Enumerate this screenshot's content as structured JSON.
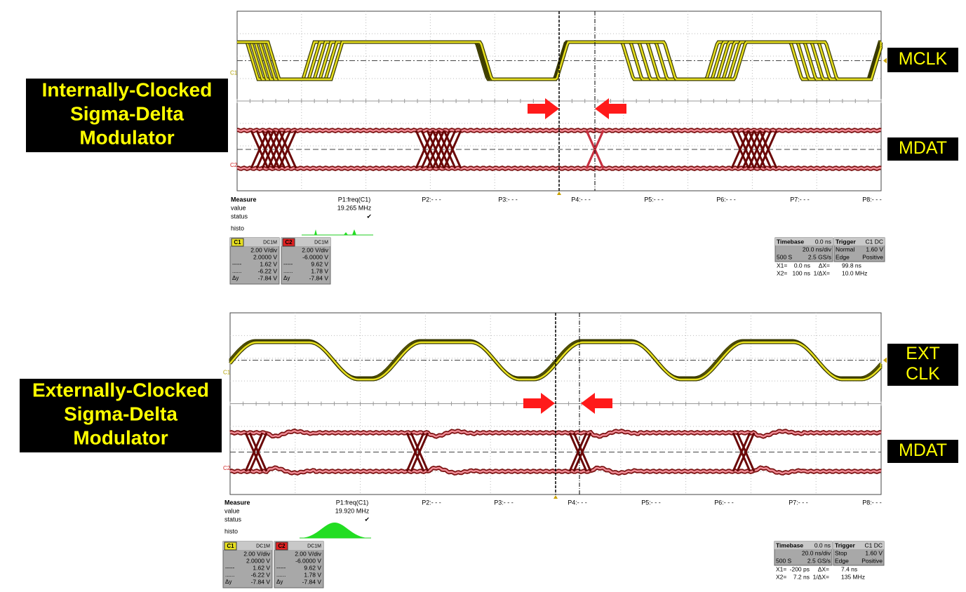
{
  "panels": [
    {
      "title_lines": [
        "Internally-Clocked",
        "Sigma-Delta",
        "Modulator"
      ],
      "signal_labels": [
        [
          "MCLK"
        ],
        [
          "MDAT"
        ]
      ],
      "trace_labels": [
        "C1",
        "C2"
      ],
      "measure": {
        "columns": [
          "Measure",
          "P1:freq(C1)",
          "P2:- - -",
          "P3:- - -",
          "P4:- - -",
          "P5:- - -",
          "P6:- - -",
          "P7:- - -",
          "P8:- - -"
        ],
        "row_labels": [
          "value",
          "status",
          "histo"
        ],
        "p1_value": "19.265 MHz",
        "p1_status": "✔"
      },
      "channels": [
        {
          "name": "C1",
          "coupling": "DC1M",
          "scale": "2.00 V/div",
          "offset": "2.0000 V",
          "rows": [
            {
              "key": "-----",
              "value": "1.62 V"
            },
            {
              "key": "......",
              "value": "-6.22 V"
            },
            {
              "key": "Δy",
              "value": "-7.84 V"
            }
          ]
        },
        {
          "name": "C2",
          "coupling": "DC1M",
          "scale": "2.00 V/div",
          "offset": "-6.0000 V",
          "rows": [
            {
              "key": "-----",
              "value": "9.62 V"
            },
            {
              "key": "......",
              "value": "1.78 V"
            },
            {
              "key": "Δy",
              "value": "-7.84 V"
            }
          ]
        }
      ],
      "timebase": {
        "title": "Timebase",
        "delay": "0.0 ns",
        "scale": "20.0 ns/div",
        "samples": "500 S",
        "rate": "2.5 GS/s"
      },
      "trigger": {
        "title": "Trigger",
        "source": "C1 DC",
        "mode": "Normal",
        "level": "1.60 V",
        "type": "Edge",
        "slope": "Positive"
      },
      "cursors": [
        [
          "X1=",
          "0.0 ns",
          "ΔX=",
          "99.8 ns"
        ],
        [
          "X2=",
          "100 ns",
          "1/ΔX=",
          "10.0 MHz"
        ]
      ]
    },
    {
      "title_lines": [
        "Externally-Clocked",
        "Sigma-Delta",
        "Modulator"
      ],
      "signal_labels": [
        [
          "EXT",
          "CLK"
        ],
        [
          "MDAT"
        ]
      ],
      "trace_labels": [
        "C1",
        "C2"
      ],
      "measure": {
        "columns": [
          "Measure",
          "P1:freq(C1)",
          "P2:- - -",
          "P3:- - -",
          "P4:- - -",
          "P5:- - -",
          "P6:- - -",
          "P7:- - -",
          "P8:- - -"
        ],
        "row_labels": [
          "value",
          "status",
          "histo"
        ],
        "p1_value": "19.920 MHz",
        "p1_status": "✔"
      },
      "channels": [
        {
          "name": "C1",
          "coupling": "DC1M",
          "scale": "2.00 V/div",
          "offset": "2.0000 V",
          "rows": [
            {
              "key": "-----",
              "value": "1.62 V"
            },
            {
              "key": "......",
              "value": "-6.22 V"
            },
            {
              "key": "Δy",
              "value": "-7.84 V"
            }
          ]
        },
        {
          "name": "C2",
          "coupling": "DC1M",
          "scale": "2.00 V/div",
          "offset": "-6.0000 V",
          "rows": [
            {
              "key": "-----",
              "value": "9.62 V"
            },
            {
              "key": "......",
              "value": "1.78 V"
            },
            {
              "key": "Δy",
              "value": "-7.84 V"
            }
          ]
        }
      ],
      "timebase": {
        "title": "Timebase",
        "delay": "0.0 ns",
        "scale": "20.0 ns/div",
        "samples": "500 S",
        "rate": "2.5 GS/s"
      },
      "trigger": {
        "title": "Trigger",
        "source": "C1 DC",
        "mode": "Stop",
        "level": "1.60 V",
        "type": "Edge",
        "slope": "Positive"
      },
      "cursors": [
        [
          "X1=",
          "-200 ps",
          "ΔX=",
          "7.4 ns"
        ],
        [
          "X2=",
          "7.2 ns",
          "1/ΔX=",
          "135 MHz"
        ]
      ]
    }
  ]
}
